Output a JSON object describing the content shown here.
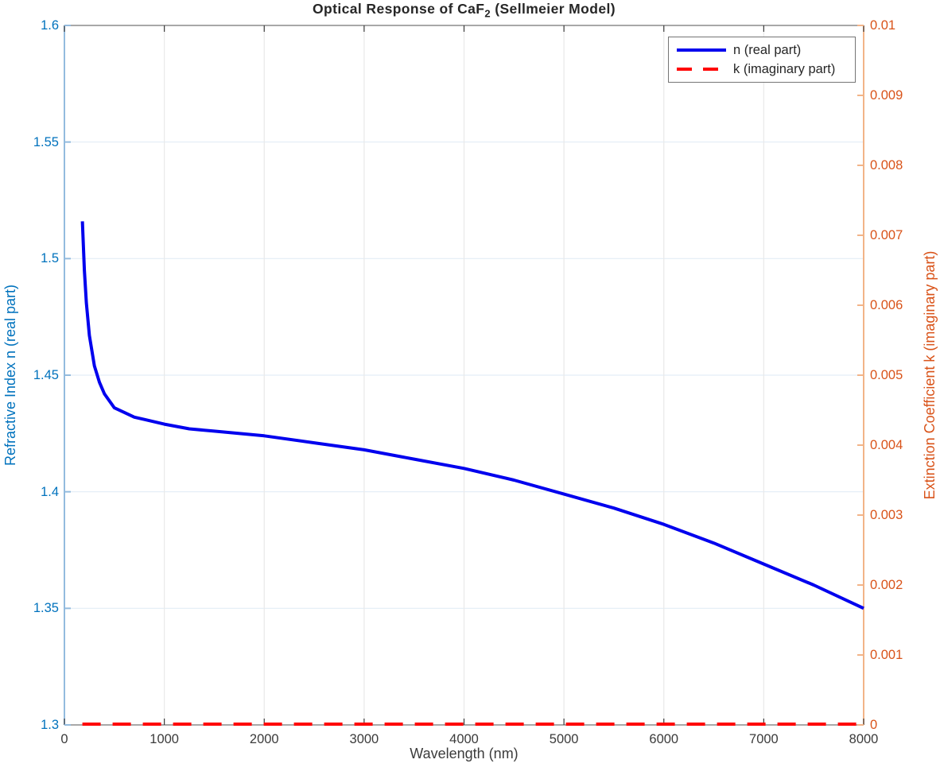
{
  "title": {
    "prefix": "Optical Response of CaF",
    "subscript": "2",
    "suffix": " (Sellmeier Model)"
  },
  "x_axis": {
    "label": "Wavelength (nm)",
    "tick_labels": [
      "0",
      "1000",
      "2000",
      "3000",
      "4000",
      "5000",
      "6000",
      "7000",
      "8000"
    ]
  },
  "left_axis": {
    "label": "Refractive Index n (real part)",
    "color": "#0072BD",
    "tick_labels": [
      "1.3",
      "1.35",
      "1.4",
      "1.45",
      "1.5",
      "1.55",
      "1.6"
    ]
  },
  "right_axis": {
    "label": "Extinction Coefficient k (imaginary part)",
    "color": "#D95319",
    "tick_labels": [
      "0",
      "0.001",
      "0.002",
      "0.003",
      "0.004",
      "0.005",
      "0.006",
      "0.007",
      "0.008",
      "0.009",
      "0.01"
    ]
  },
  "legend": {
    "items": [
      {
        "label": "n (real part)",
        "color": "#0000EE",
        "style": "solid"
      },
      {
        "label": "k (imaginary part)",
        "color": "#FF0000",
        "style": "dashed"
      }
    ]
  },
  "chart_data": {
    "type": "line",
    "title": "Optical Response of CaF2 (Sellmeier Model)",
    "xlabel": "Wavelength (nm)",
    "ylabel_left": "Refractive Index n (real part)",
    "ylabel_right": "Extinction Coefficient k (imaginary part)",
    "xlim": [
      0,
      8000
    ],
    "ylim_left": [
      1.3,
      1.6
    ],
    "ylim_right": [
      0,
      0.01
    ],
    "grid": true,
    "legend_position": "top-right",
    "series": [
      {
        "name": "n (real part)",
        "axis": "left",
        "color": "#0000EE",
        "style": "solid",
        "width": 4,
        "x": [
          180,
          190,
          200,
          220,
          250,
          300,
          350,
          400,
          500,
          600,
          700,
          800,
          1000,
          1250,
          1500,
          2000,
          2500,
          3000,
          3500,
          4000,
          4500,
          5000,
          5500,
          6000,
          6500,
          7000,
          7500,
          8000
        ],
        "y": [
          1.516,
          1.505,
          1.495,
          1.481,
          1.467,
          1.454,
          1.447,
          1.442,
          1.436,
          1.434,
          1.432,
          1.431,
          1.429,
          1.427,
          1.426,
          1.424,
          1.421,
          1.418,
          1.414,
          1.41,
          1.405,
          1.399,
          1.393,
          1.386,
          1.378,
          1.369,
          1.36,
          1.35
        ]
      },
      {
        "name": "k (imaginary part)",
        "axis": "right",
        "color": "#FF0000",
        "style": "dashed",
        "width": 4,
        "x": [
          180,
          8000
        ],
        "y": [
          0,
          0
        ]
      }
    ]
  }
}
